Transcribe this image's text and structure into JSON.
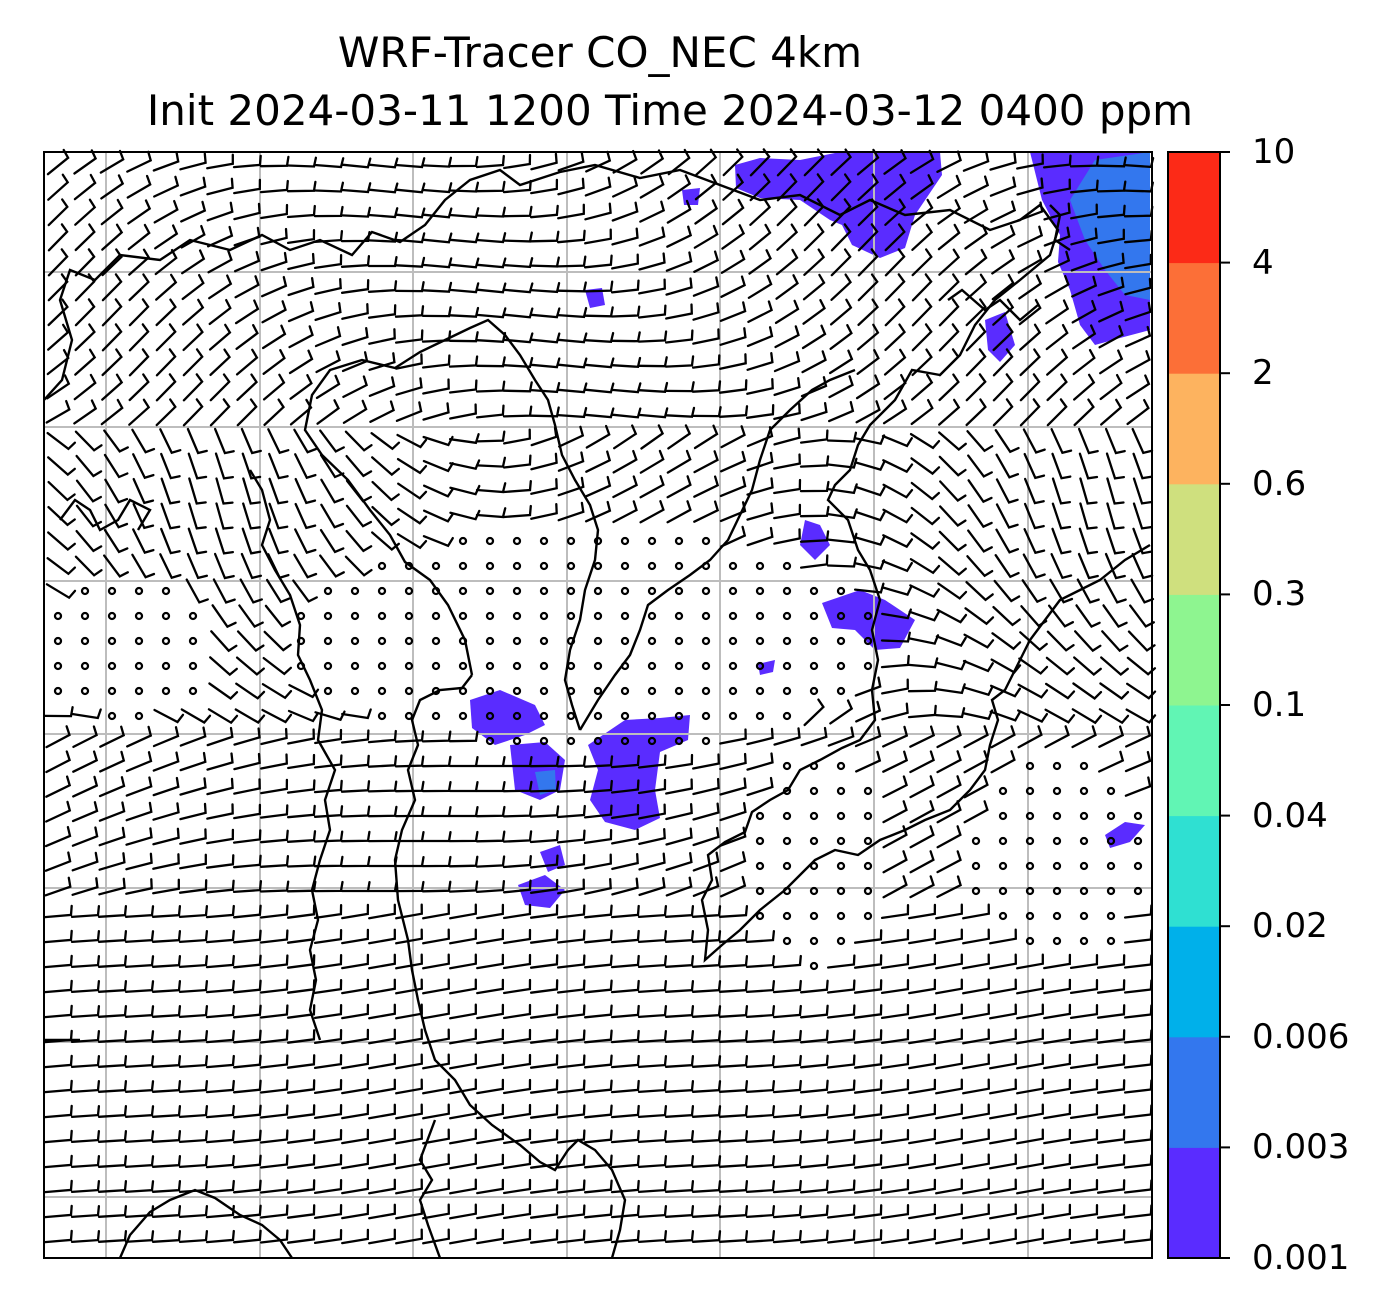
{
  "title": {
    "line1": "WRF-Tracer CO_NEC 4km",
    "line2": "Init 2024-03-11 1200 Time 2024-03-12 0400 ppm"
  },
  "colorbar": {
    "levels": [
      "0.001",
      "0.003",
      "0.006",
      "0.02",
      "0.04",
      "0.1",
      "0.3",
      "0.6",
      "2",
      "4",
      "10"
    ],
    "colors": [
      "#5a2cff",
      "#3377ee",
      "#00b0ea",
      "#2fe0d2",
      "#61f5b4",
      "#8ef590",
      "#cfe07e",
      "#fdb35f",
      "#fc6f37",
      "#fc2a17"
    ]
  },
  "map": {
    "gridlines": true,
    "grid_color": "#bdbdbd",
    "tracer_color": "#5a2cff",
    "tracer_edge_color": "#3377ee"
  }
}
